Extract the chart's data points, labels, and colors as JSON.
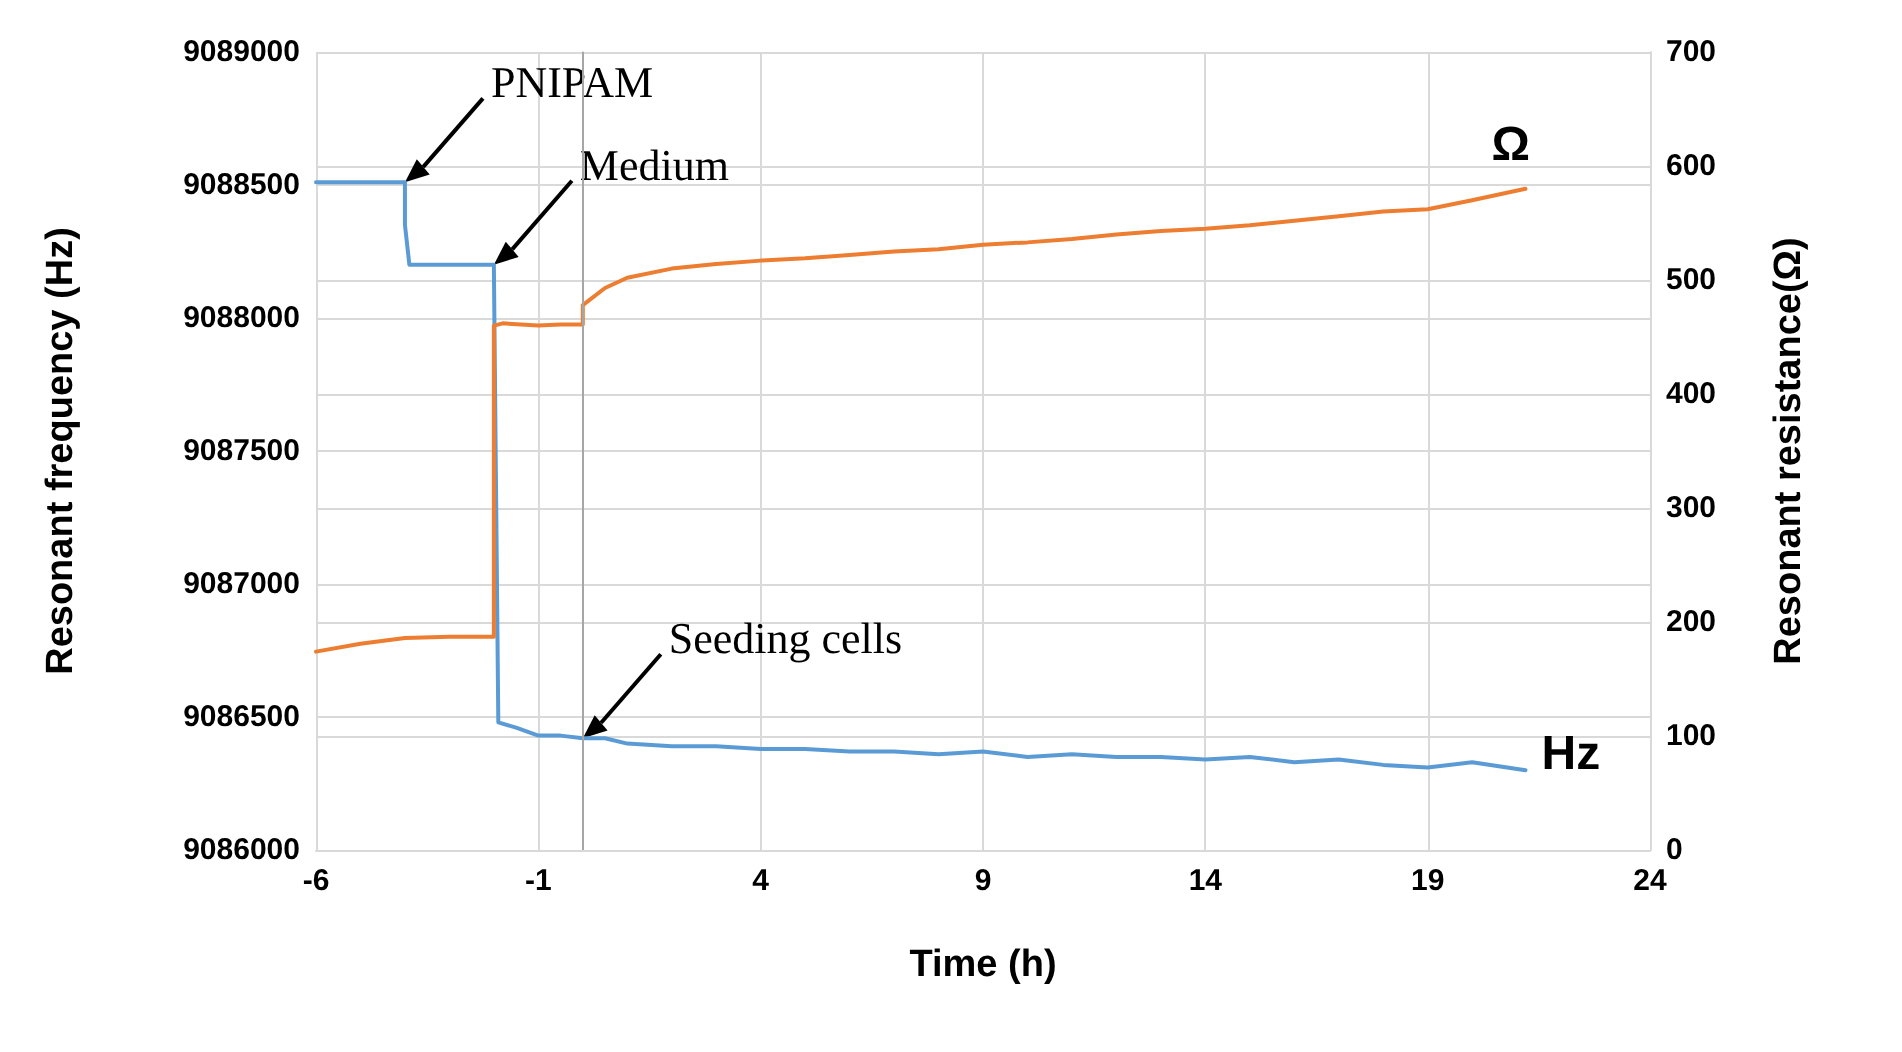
{
  "chart_data": {
    "type": "line",
    "xlabel": "Time (h)",
    "ylabel": "Resonant frequency (Hz)",
    "y2label": "Resonant resistance(Ω)",
    "xlim": [
      -6,
      24
    ],
    "xticks": [
      -6,
      -1,
      4,
      9,
      14,
      19,
      24
    ],
    "ylim": [
      9086000,
      9089000
    ],
    "yticks": [
      9086000,
      9086500,
      9087000,
      9087500,
      9088000,
      9088500,
      9089000
    ],
    "y2lim": [
      0,
      700
    ],
    "y2ticks": [
      0,
      100,
      200,
      300,
      400,
      500,
      600,
      700
    ],
    "grid": true,
    "legend": false,
    "marker": "none",
    "line_style": "solid",
    "series": [
      {
        "name": "Hz",
        "color": "#5b9bd5",
        "x": [
          -6,
          -4,
          -4,
          -3.9,
          -2,
          -1.9,
          -1.5,
          -1,
          -0.5,
          0,
          0.5,
          1,
          2,
          3,
          4,
          5,
          6,
          7,
          8,
          9,
          10,
          11,
          12,
          13,
          14,
          15,
          16,
          17,
          18,
          19,
          20,
          21.2
        ],
        "values": [
          9088510,
          9088510,
          9088350,
          9088200,
          9088200,
          9086480,
          9086460,
          9086430,
          9086430,
          9086420,
          9086420,
          9086400,
          9086390,
          9086390,
          9086380,
          9086380,
          9086370,
          9086370,
          9086360,
          9086370,
          9086350,
          9086360,
          9086350,
          9086350,
          9086340,
          9086350,
          9086330,
          9086340,
          9086320,
          9086310,
          9086330,
          9086300
        ]
      },
      {
        "name": "Ω",
        "color": "#ed7d31",
        "axis": "y2",
        "x": [
          -6,
          -5,
          -4,
          -3,
          -2,
          -2,
          -1.8,
          -1,
          -0.5,
          0,
          0,
          0.5,
          1,
          2,
          3,
          4,
          5,
          6,
          7,
          8,
          9,
          10,
          11,
          12,
          13,
          14,
          15,
          16,
          17,
          18,
          19,
          20,
          21.2
        ],
        "values": [
          174,
          181,
          186,
          187,
          187,
          460,
          462,
          460,
          461,
          461,
          478,
          493,
          502,
          510,
          514,
          517,
          519,
          522,
          525,
          527,
          531,
          533,
          536,
          540,
          543,
          545,
          548,
          552,
          556,
          560,
          562,
          570,
          580
        ]
      }
    ],
    "ref_lines": [
      {
        "axis": "x",
        "value": 0,
        "color": "#a6a6a6"
      }
    ],
    "annotations": [
      {
        "text": "PNIPAM",
        "x": -4,
        "y": 9088510
      },
      {
        "text": "Medium",
        "x": -2,
        "y": 9088200
      },
      {
        "text": "Seeding cells",
        "x": 0,
        "y": 9086420
      }
    ]
  }
}
